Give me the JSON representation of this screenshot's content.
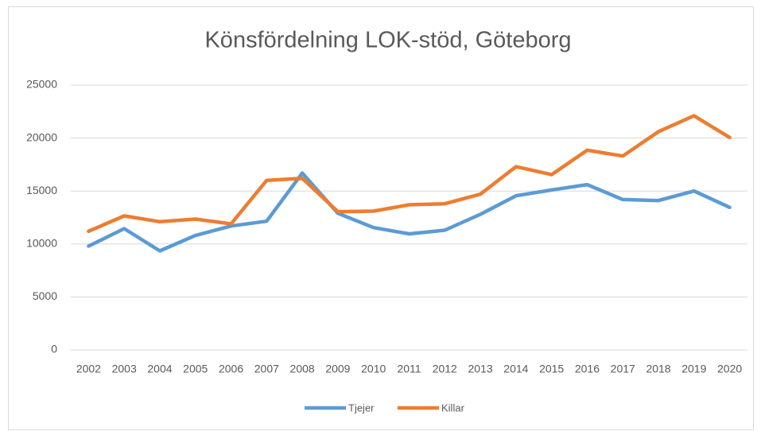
{
  "chart_data": {
    "type": "line",
    "title": "Könsfördelning LOK-stöd, Göteborg",
    "categories": [
      "2002",
      "2003",
      "2004",
      "2005",
      "2006",
      "2007",
      "2008",
      "2009",
      "2010",
      "2011",
      "2012",
      "2013",
      "2014",
      "2015",
      "2016",
      "2017",
      "2018",
      "2019",
      "2020"
    ],
    "series": [
      {
        "name": "Tjejer",
        "color": "#5b9bd5",
        "values": [
          9800,
          11450,
          9350,
          10800,
          11700,
          12150,
          16700,
          12900,
          11550,
          10950,
          11300,
          12800,
          14550,
          15100,
          15600,
          14200,
          14100,
          15000,
          13450
        ]
      },
      {
        "name": "Killar",
        "color": "#ed7d31",
        "values": [
          11200,
          12650,
          12100,
          12350,
          11900,
          16000,
          16200,
          13050,
          13100,
          13700,
          13800,
          14700,
          17300,
          16550,
          18850,
          18300,
          20600,
          22100,
          20050
        ]
      }
    ],
    "ylim": [
      0,
      25000
    ],
    "yticks": [
      0,
      5000,
      10000,
      15000,
      20000,
      25000
    ],
    "grid": true,
    "legend": "bottom"
  }
}
